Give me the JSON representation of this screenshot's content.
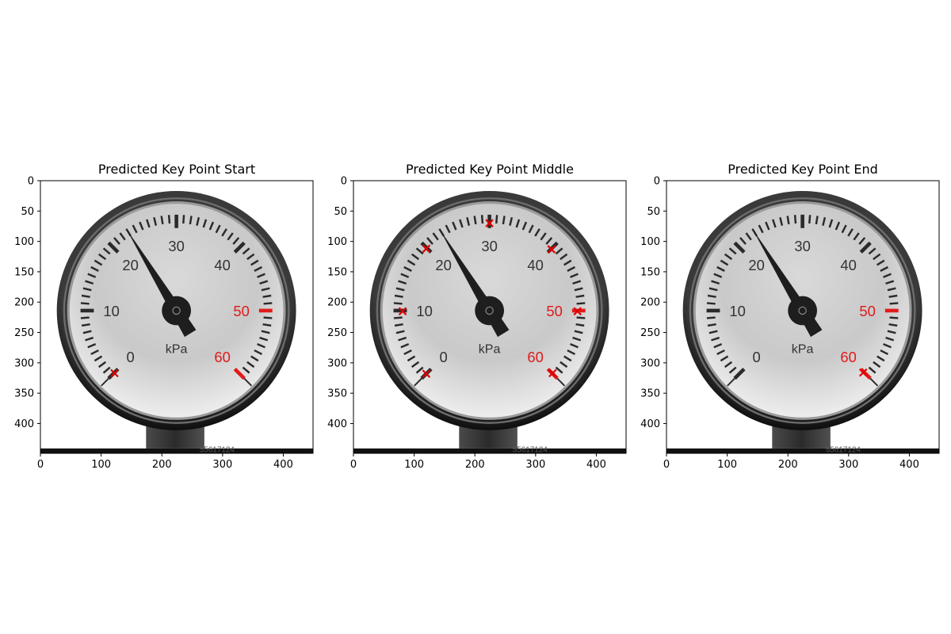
{
  "figure": {
    "panels": [
      {
        "title": "Predicted Key Point Start"
      },
      {
        "title": "Predicted Key Point Middle"
      },
      {
        "title": "Predicted Key Point End"
      }
    ]
  },
  "gauge": {
    "unit": "kPa",
    "range": [
      0,
      60
    ],
    "numerals": [
      "0",
      "10",
      "20",
      "30",
      "40",
      "50",
      "60"
    ],
    "red_numerals": [
      "50",
      "60"
    ],
    "needle_value": 23,
    "serial_text": "55617124"
  },
  "colors": {
    "marker": "#dd0000",
    "red_numeral": "#e01b1b",
    "bezel_dark": "#1a1a1a",
    "dial_face": "#d2d2d2"
  },
  "chart_data": [
    {
      "type": "scatter",
      "title": "Predicted Key Point Start",
      "x_ticks": [
        "0",
        "100",
        "200",
        "300",
        "400"
      ],
      "y_ticks": [
        "0",
        "50",
        "100",
        "150",
        "200",
        "250",
        "300",
        "350",
        "400"
      ],
      "xlim": [
        0,
        449
      ],
      "ylim": [
        449,
        0
      ],
      "points": [
        {
          "x": 122,
          "y": 317
        }
      ]
    },
    {
      "type": "scatter",
      "title": "Predicted Key Point Middle",
      "x_ticks": [
        "0",
        "100",
        "200",
        "300",
        "400"
      ],
      "y_ticks": [
        "0",
        "50",
        "100",
        "150",
        "200",
        "250",
        "300",
        "350",
        "400"
      ],
      "xlim": [
        0,
        449
      ],
      "ylim": [
        449,
        0
      ],
      "points": [
        {
          "x": 120,
          "y": 318
        },
        {
          "x": 81,
          "y": 215
        },
        {
          "x": 120,
          "y": 112
        },
        {
          "x": 224,
          "y": 70
        },
        {
          "x": 326,
          "y": 113
        },
        {
          "x": 369,
          "y": 215
        },
        {
          "x": 328,
          "y": 317
        }
      ]
    },
    {
      "type": "scatter",
      "title": "Predicted Key Point End",
      "x_ticks": [
        "0",
        "100",
        "200",
        "300",
        "400"
      ],
      "y_ticks": [
        "0",
        "50",
        "100",
        "150",
        "200",
        "250",
        "300",
        "350",
        "400"
      ],
      "xlim": [
        0,
        449
      ],
      "ylim": [
        449,
        0
      ],
      "points": [
        {
          "x": 324,
          "y": 316
        }
      ]
    }
  ]
}
